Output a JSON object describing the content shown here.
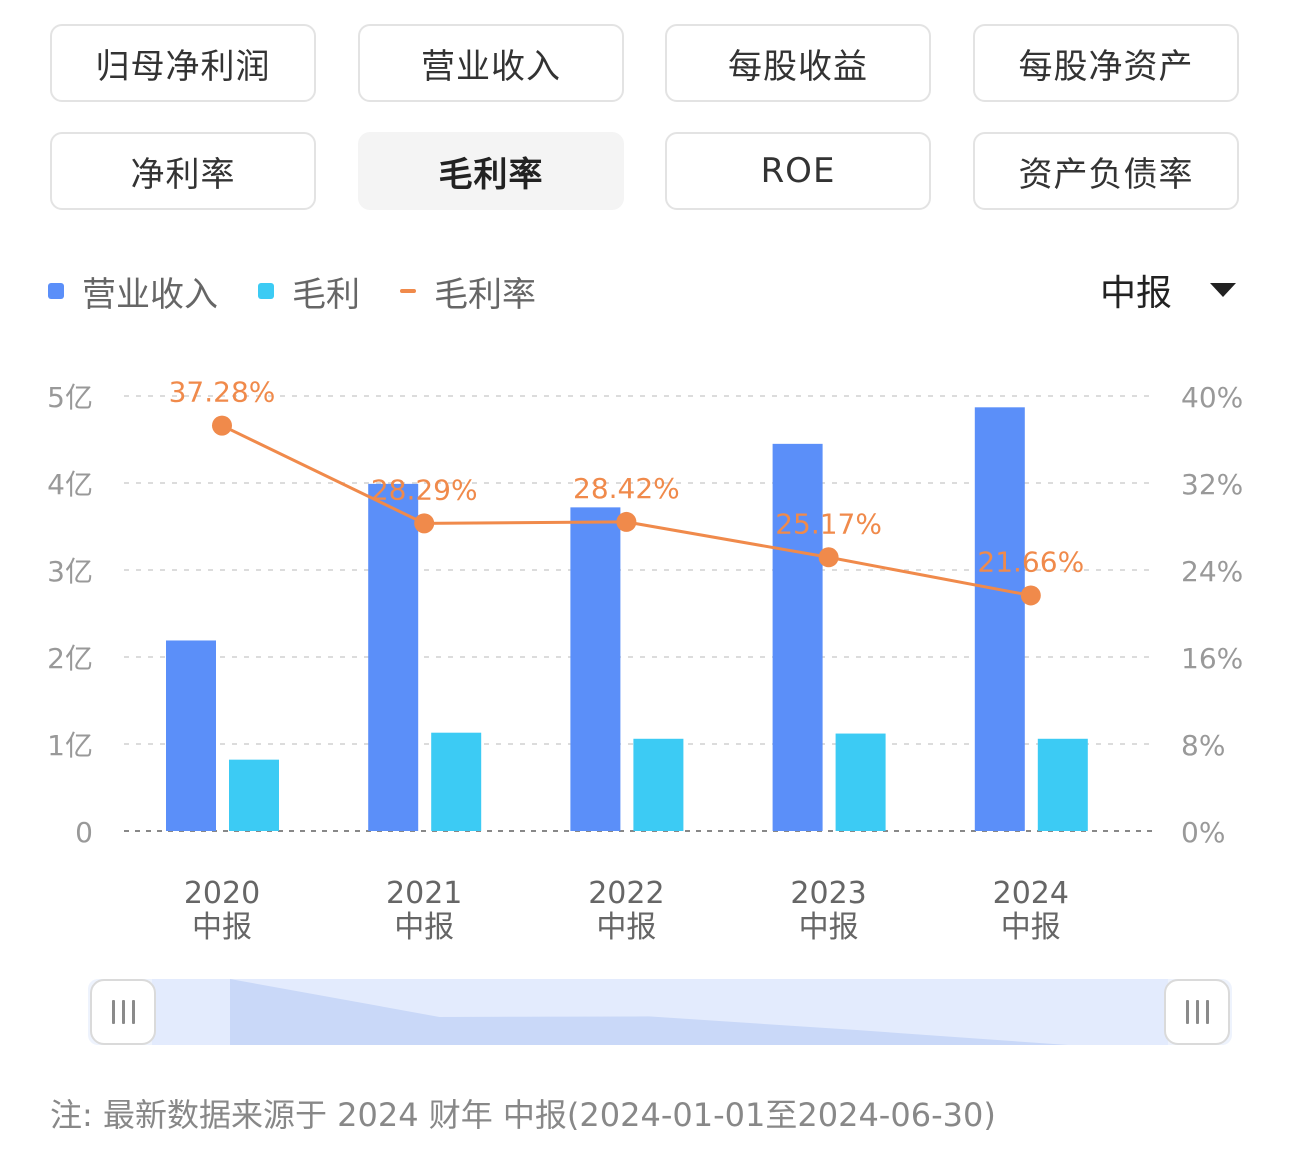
{
  "tabs": [
    {
      "label": "归母净利润"
    },
    {
      "label": "营业收入"
    },
    {
      "label": "每股收益"
    },
    {
      "label": "每股净资产"
    },
    {
      "label": "净利率"
    },
    {
      "label": "毛利率",
      "active": true
    },
    {
      "label": "ROE"
    },
    {
      "label": "资产负债率"
    }
  ],
  "legend": [
    {
      "label": "营业收入",
      "color": "#5b8ff9",
      "kind": "box"
    },
    {
      "label": "毛利",
      "color": "#3ccbf4",
      "kind": "box"
    },
    {
      "label": "毛利率",
      "color": "#f08a4b",
      "kind": "line"
    }
  ],
  "period_select": {
    "value": "中报",
    "icon": "caret-down-icon"
  },
  "chart_data": {
    "type": "bar",
    "categories": [
      {
        "year": "2020",
        "period": "中报"
      },
      {
        "year": "2021",
        "period": "中报"
      },
      {
        "year": "2022",
        "period": "中报"
      },
      {
        "year": "2023",
        "period": "中报"
      },
      {
        "year": "2024",
        "period": "中报"
      }
    ],
    "series": [
      {
        "name": "营业收入",
        "type": "bar",
        "axis": "left",
        "color": "#5b8ff9",
        "values": [
          2.19,
          3.99,
          3.72,
          4.45,
          4.87
        ]
      },
      {
        "name": "毛利",
        "type": "bar",
        "axis": "left",
        "color": "#3ccbf4",
        "values": [
          0.82,
          1.13,
          1.06,
          1.12,
          1.06
        ]
      },
      {
        "name": "毛利率",
        "type": "line",
        "axis": "right",
        "color": "#f08a4b",
        "values": [
          37.28,
          28.29,
          28.42,
          25.17,
          21.66
        ],
        "labels": [
          "37.28%",
          "28.29%",
          "28.42%",
          "25.17%",
          "21.66%"
        ]
      }
    ],
    "y_left": {
      "ylim": [
        0,
        5
      ],
      "ticks": [
        "0",
        "1亿",
        "2亿",
        "3亿",
        "4亿",
        "5亿"
      ]
    },
    "y_right": {
      "ylim": [
        0,
        40
      ],
      "ticks": [
        "0%",
        "8%",
        "16%",
        "24%",
        "32%",
        "40%"
      ]
    },
    "grid": true
  },
  "zoom_slider": {
    "start_fraction": 0.0,
    "end_fraction": 1.0,
    "icon": "grip-icon"
  },
  "note": "注: 最新数据来源于 2024 财年 中报(2024-01-01至2024-06-30)"
}
